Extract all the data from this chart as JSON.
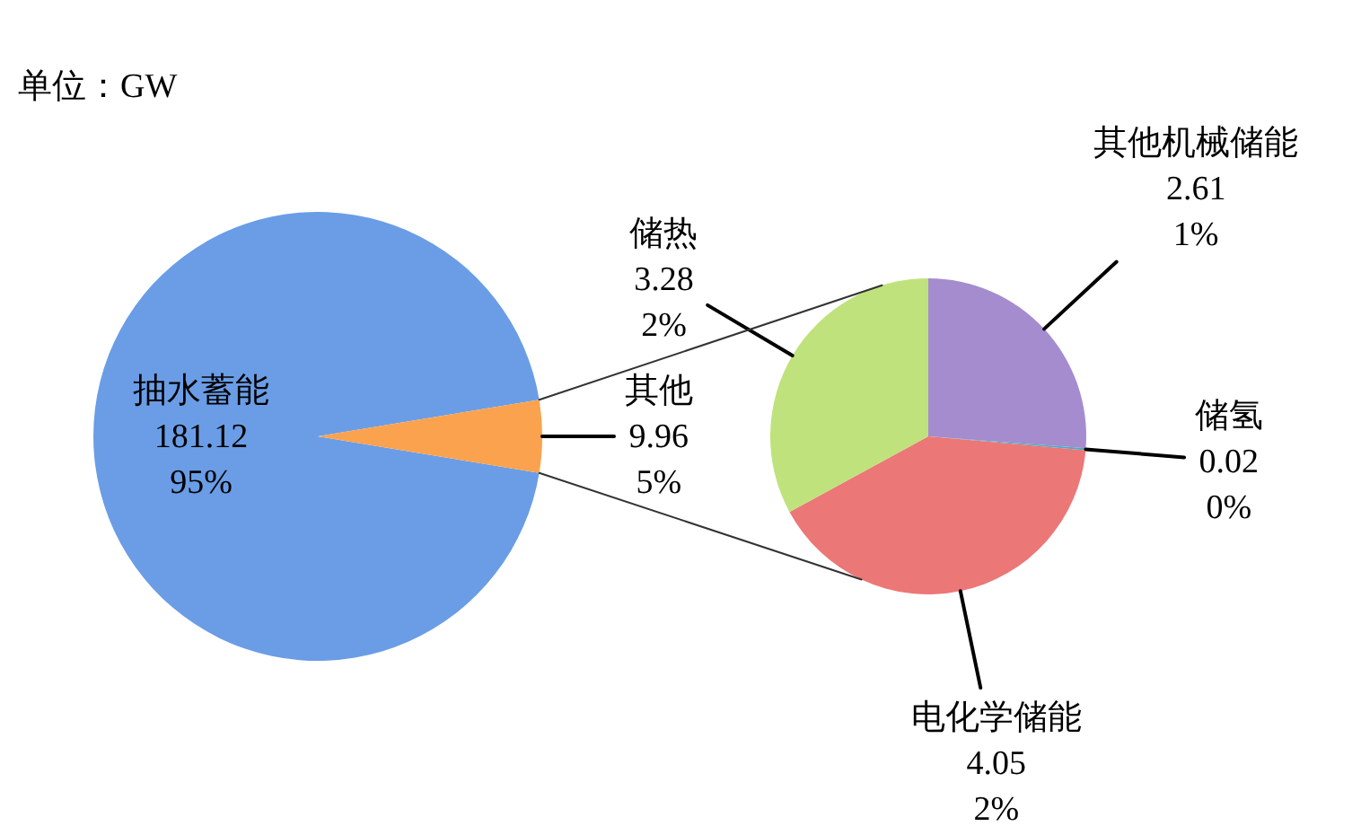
{
  "chart_data": [
    {
      "type": "pie",
      "title": "单位：GW",
      "categories": [
        "抽水蓄能",
        "其他"
      ],
      "values": [
        181.12,
        9.96
      ],
      "colors": [
        "#6a9de6",
        "#fba24e"
      ],
      "value_labels": [
        "181.12\n95%",
        "9.96\n5%"
      ]
    },
    {
      "type": "pie",
      "categories": [
        "其他机械储能",
        "储氢",
        "电化学储能",
        "储热"
      ],
      "values": [
        2.61,
        0.02,
        4.05,
        3.28
      ],
      "colors": [
        "#a58ccf",
        "#4bacc6",
        "#ec7777",
        "#bfe27c"
      ],
      "value_labels": [
        "2.61\n1%",
        "0.02\n0%",
        "4.05\n2%",
        "3.28\n2%"
      ]
    }
  ]
}
